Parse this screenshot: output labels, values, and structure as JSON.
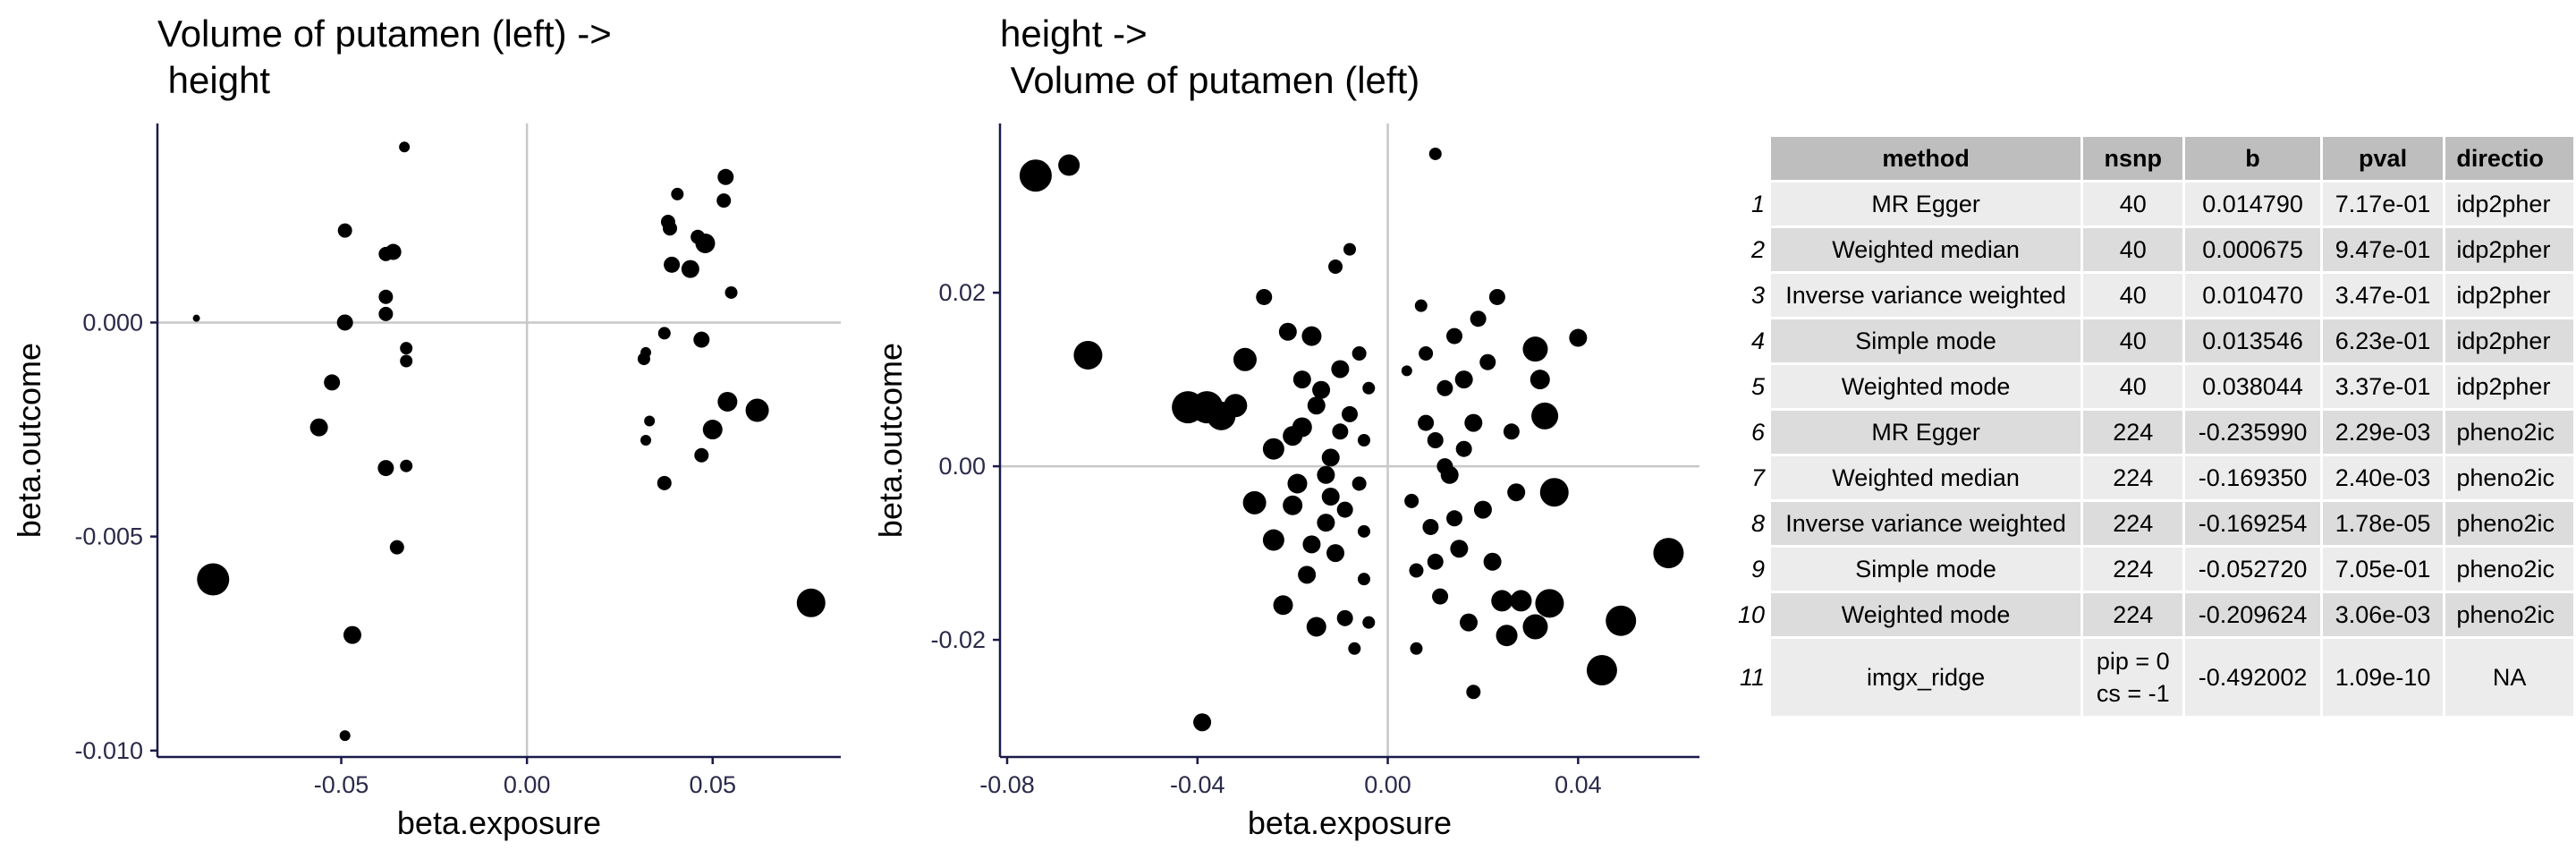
{
  "chart_data": [
    {
      "type": "scatter",
      "title_line1": "Volume of putamen (left) ->",
      "title_line2": " height",
      "xlabel": "beta.exposure",
      "ylabel": "beta.outcome",
      "xlim": [
        -0.0995,
        0.0845
      ],
      "ylim": [
        -0.01015,
        0.00465
      ],
      "xticks": [
        -0.05,
        0.0,
        0.05
      ],
      "xtick_labels": [
        "-0.05",
        "0.00",
        "0.05"
      ],
      "yticks": [
        0.0,
        -0.005,
        -0.01
      ],
      "ytick_labels": [
        "0.000",
        "-0.005",
        "-0.010"
      ],
      "points": [
        {
          "x": -0.089,
          "y": 0.0001,
          "r": 4
        },
        {
          "x": -0.0845,
          "y": -0.006,
          "r": 18
        },
        {
          "x": -0.056,
          "y": -0.00245,
          "r": 10
        },
        {
          "x": -0.0525,
          "y": -0.0014,
          "r": 9
        },
        {
          "x": -0.049,
          "y": 0.00215,
          "r": 8
        },
        {
          "x": -0.049,
          "y": 0.0,
          "r": 9
        },
        {
          "x": -0.049,
          "y": -0.00965,
          "r": 6
        },
        {
          "x": -0.047,
          "y": -0.0073,
          "r": 10
        },
        {
          "x": -0.038,
          "y": 0.0016,
          "r": 8
        },
        {
          "x": -0.038,
          "y": 0.0006,
          "r": 8
        },
        {
          "x": -0.038,
          "y": 0.0002,
          "r": 8
        },
        {
          "x": -0.038,
          "y": -0.0034,
          "r": 9
        },
        {
          "x": -0.036,
          "y": 0.00165,
          "r": 9
        },
        {
          "x": -0.035,
          "y": -0.00525,
          "r": 8
        },
        {
          "x": -0.033,
          "y": 0.0041,
          "r": 6
        },
        {
          "x": -0.0325,
          "y": -0.0006,
          "r": 7
        },
        {
          "x": -0.0325,
          "y": -0.0009,
          "r": 7
        },
        {
          "x": -0.0325,
          "y": -0.00335,
          "r": 7
        },
        {
          "x": 0.0315,
          "y": -0.00085,
          "r": 7
        },
        {
          "x": 0.032,
          "y": -0.0007,
          "r": 6
        },
        {
          "x": 0.032,
          "y": -0.00275,
          "r": 6
        },
        {
          "x": 0.033,
          "y": -0.0023,
          "r": 6
        },
        {
          "x": 0.037,
          "y": -0.00375,
          "r": 8
        },
        {
          "x": 0.037,
          "y": -0.00025,
          "r": 7
        },
        {
          "x": 0.038,
          "y": 0.00235,
          "r": 8
        },
        {
          "x": 0.0385,
          "y": 0.0022,
          "r": 8
        },
        {
          "x": 0.039,
          "y": 0.00135,
          "r": 9
        },
        {
          "x": 0.0405,
          "y": 0.003,
          "r": 7
        },
        {
          "x": 0.044,
          "y": 0.00125,
          "r": 10
        },
        {
          "x": 0.046,
          "y": 0.002,
          "r": 8
        },
        {
          "x": 0.047,
          "y": -0.0004,
          "r": 9
        },
        {
          "x": 0.047,
          "y": -0.0031,
          "r": 8
        },
        {
          "x": 0.048,
          "y": 0.00185,
          "r": 11
        },
        {
          "x": 0.05,
          "y": -0.0025,
          "r": 11
        },
        {
          "x": 0.053,
          "y": 0.00285,
          "r": 8
        },
        {
          "x": 0.0535,
          "y": 0.0034,
          "r": 9
        },
        {
          "x": 0.054,
          "y": -0.00185,
          "r": 11
        },
        {
          "x": 0.055,
          "y": 0.0007,
          "r": 7
        },
        {
          "x": 0.062,
          "y": -0.00205,
          "r": 13
        },
        {
          "x": 0.0765,
          "y": -0.00655,
          "r": 16
        }
      ]
    },
    {
      "type": "scatter",
      "title_line1": "height ->",
      "title_line2": " Volume of putamen (left)",
      "xlabel": "beta.exposure",
      "ylabel": "beta.outcome",
      "xlim": [
        -0.0815,
        0.0655
      ],
      "ylim": [
        -0.0335,
        0.0395
      ],
      "xticks": [
        -0.08,
        -0.04,
        0.0,
        0.04
      ],
      "xtick_labels": [
        "-0.08",
        "-0.04",
        "0.00",
        "0.04"
      ],
      "yticks": [
        0.02,
        0.0,
        -0.02
      ],
      "ytick_labels": [
        "0.02",
        "0.00",
        "-0.02"
      ],
      "points": [
        {
          "x": -0.074,
          "y": 0.0335,
          "r": 18
        },
        {
          "x": -0.067,
          "y": 0.0347,
          "r": 12
        },
        {
          "x": -0.063,
          "y": 0.0128,
          "r": 16
        },
        {
          "x": -0.042,
          "y": 0.0068,
          "r": 18
        },
        {
          "x": -0.038,
          "y": 0.0068,
          "r": 18
        },
        {
          "x": -0.035,
          "y": 0.0058,
          "r": 16
        },
        {
          "x": -0.032,
          "y": 0.007,
          "r": 13
        },
        {
          "x": -0.03,
          "y": 0.0123,
          "r": 13
        },
        {
          "x": -0.028,
          "y": -0.0042,
          "r": 13
        },
        {
          "x": -0.026,
          "y": 0.0195,
          "r": 9
        },
        {
          "x": -0.024,
          "y": 0.002,
          "r": 12
        },
        {
          "x": -0.024,
          "y": -0.0085,
          "r": 12
        },
        {
          "x": -0.022,
          "y": -0.016,
          "r": 11
        },
        {
          "x": -0.021,
          "y": 0.0155,
          "r": 10
        },
        {
          "x": -0.02,
          "y": 0.0035,
          "r": 11
        },
        {
          "x": -0.019,
          "y": -0.002,
          "r": 11
        },
        {
          "x": -0.018,
          "y": 0.0045,
          "r": 11
        },
        {
          "x": -0.017,
          "y": -0.0125,
          "r": 10
        },
        {
          "x": -0.016,
          "y": 0.015,
          "r": 11
        },
        {
          "x": -0.015,
          "y": -0.0185,
          "r": 11
        },
        {
          "x": -0.014,
          "y": 0.0088,
          "r": 10
        },
        {
          "x": -0.013,
          "y": -0.0065,
          "r": 10
        },
        {
          "x": -0.012,
          "y": 0.001,
          "r": 10
        },
        {
          "x": -0.012,
          "y": -0.0035,
          "r": 10
        },
        {
          "x": -0.011,
          "y": 0.023,
          "r": 8
        },
        {
          "x": -0.011,
          "y": -0.01,
          "r": 10
        },
        {
          "x": -0.01,
          "y": 0.0112,
          "r": 10
        },
        {
          "x": -0.009,
          "y": -0.005,
          "r": 9
        },
        {
          "x": -0.009,
          "y": -0.0175,
          "r": 9
        },
        {
          "x": -0.008,
          "y": 0.006,
          "r": 9
        },
        {
          "x": -0.008,
          "y": 0.025,
          "r": 7
        },
        {
          "x": -0.007,
          "y": -0.021,
          "r": 7
        },
        {
          "x": -0.006,
          "y": 0.013,
          "r": 8
        },
        {
          "x": -0.006,
          "y": -0.002,
          "r": 8
        },
        {
          "x": -0.005,
          "y": 0.003,
          "r": 7
        },
        {
          "x": -0.005,
          "y": -0.0075,
          "r": 7
        },
        {
          "x": -0.005,
          "y": -0.013,
          "r": 7
        },
        {
          "x": -0.004,
          "y": 0.009,
          "r": 7
        },
        {
          "x": -0.004,
          "y": -0.018,
          "r": 7
        },
        {
          "x": -0.018,
          "y": 0.01,
          "r": 10
        },
        {
          "x": -0.015,
          "y": 0.007,
          "r": 10
        },
        {
          "x": -0.013,
          "y": -0.001,
          "r": 10
        },
        {
          "x": -0.01,
          "y": 0.004,
          "r": 9
        },
        {
          "x": -0.016,
          "y": -0.009,
          "r": 10
        },
        {
          "x": -0.02,
          "y": -0.0045,
          "r": 11
        },
        {
          "x": -0.039,
          "y": -0.0295,
          "r": 10
        },
        {
          "x": 0.004,
          "y": 0.011,
          "r": 6
        },
        {
          "x": 0.005,
          "y": -0.004,
          "r": 8
        },
        {
          "x": 0.006,
          "y": -0.012,
          "r": 8
        },
        {
          "x": 0.006,
          "y": -0.021,
          "r": 7
        },
        {
          "x": 0.007,
          "y": 0.0185,
          "r": 7
        },
        {
          "x": 0.008,
          "y": 0.005,
          "r": 9
        },
        {
          "x": 0.009,
          "y": -0.007,
          "r": 9
        },
        {
          "x": 0.01,
          "y": 0.036,
          "r": 7
        },
        {
          "x": 0.01,
          "y": 0.003,
          "r": 9
        },
        {
          "x": 0.011,
          "y": -0.015,
          "r": 9
        },
        {
          "x": 0.012,
          "y": 0.009,
          "r": 9
        },
        {
          "x": 0.013,
          "y": -0.001,
          "r": 10
        },
        {
          "x": 0.014,
          "y": 0.015,
          "r": 9
        },
        {
          "x": 0.015,
          "y": -0.0095,
          "r": 10
        },
        {
          "x": 0.016,
          "y": 0.01,
          "r": 10
        },
        {
          "x": 0.017,
          "y": -0.018,
          "r": 10
        },
        {
          "x": 0.018,
          "y": 0.005,
          "r": 10
        },
        {
          "x": 0.018,
          "y": -0.026,
          "r": 8
        },
        {
          "x": 0.019,
          "y": 0.017,
          "r": 9
        },
        {
          "x": 0.02,
          "y": -0.005,
          "r": 10
        },
        {
          "x": 0.021,
          "y": 0.012,
          "r": 9
        },
        {
          "x": 0.022,
          "y": -0.011,
          "r": 10
        },
        {
          "x": 0.023,
          "y": 0.0195,
          "r": 9
        },
        {
          "x": 0.024,
          "y": -0.0155,
          "r": 12
        },
        {
          "x": 0.025,
          "y": -0.0195,
          "r": 12
        },
        {
          "x": 0.026,
          "y": 0.004,
          "r": 9
        },
        {
          "x": 0.027,
          "y": -0.003,
          "r": 10
        },
        {
          "x": 0.028,
          "y": -0.0155,
          "r": 12
        },
        {
          "x": 0.031,
          "y": 0.0135,
          "r": 14
        },
        {
          "x": 0.031,
          "y": -0.0185,
          "r": 14
        },
        {
          "x": 0.032,
          "y": 0.01,
          "r": 11
        },
        {
          "x": 0.033,
          "y": 0.0058,
          "r": 15
        },
        {
          "x": 0.034,
          "y": -0.0158,
          "r": 16
        },
        {
          "x": 0.035,
          "y": -0.003,
          "r": 16
        },
        {
          "x": 0.04,
          "y": 0.0148,
          "r": 10
        },
        {
          "x": 0.045,
          "y": -0.0235,
          "r": 17
        },
        {
          "x": 0.049,
          "y": -0.0178,
          "r": 17
        },
        {
          "x": 0.059,
          "y": -0.01,
          "r": 17
        },
        {
          "x": 0.012,
          "y": 0.0,
          "r": 9
        },
        {
          "x": 0.014,
          "y": -0.006,
          "r": 9
        },
        {
          "x": 0.01,
          "y": -0.011,
          "r": 9
        },
        {
          "x": 0.008,
          "y": 0.013,
          "r": 8
        },
        {
          "x": 0.016,
          "y": 0.002,
          "r": 9
        }
      ]
    }
  ],
  "table": {
    "columns": [
      "method",
      "nsnp",
      "b",
      "pval",
      "directio"
    ],
    "rows": [
      {
        "idx": "1",
        "method": "MR Egger",
        "nsnp": "40",
        "b": "0.014790",
        "pval": "7.17e-01",
        "direction": "idp2pher"
      },
      {
        "idx": "2",
        "method": "Weighted median",
        "nsnp": "40",
        "b": "0.000675",
        "pval": "9.47e-01",
        "direction": "idp2pher"
      },
      {
        "idx": "3",
        "method": "Inverse variance weighted",
        "nsnp": "40",
        "b": "0.010470",
        "pval": "3.47e-01",
        "direction": "idp2pher"
      },
      {
        "idx": "4",
        "method": "Simple mode",
        "nsnp": "40",
        "b": "0.013546",
        "pval": "6.23e-01",
        "direction": "idp2pher"
      },
      {
        "idx": "5",
        "method": "Weighted mode",
        "nsnp": "40",
        "b": "0.038044",
        "pval": "3.37e-01",
        "direction": "idp2pher"
      },
      {
        "idx": "6",
        "method": "MR Egger",
        "nsnp": "224",
        "b": "-0.235990",
        "pval": "2.29e-03",
        "direction": "pheno2ic"
      },
      {
        "idx": "7",
        "method": "Weighted median",
        "nsnp": "224",
        "b": "-0.169350",
        "pval": "2.40e-03",
        "direction": "pheno2ic"
      },
      {
        "idx": "8",
        "method": "Inverse variance weighted",
        "nsnp": "224",
        "b": "-0.169254",
        "pval": "1.78e-05",
        "direction": "pheno2ic"
      },
      {
        "idx": "9",
        "method": "Simple mode",
        "nsnp": "224",
        "b": "-0.052720",
        "pval": "7.05e-01",
        "direction": "pheno2ic"
      },
      {
        "idx": "10",
        "method": "Weighted mode",
        "nsnp": "224",
        "b": "-0.209624",
        "pval": "3.06e-03",
        "direction": "pheno2ic"
      },
      {
        "idx": "11",
        "method": "imgx_ridge",
        "nsnp": "pip = 0",
        "nsnp2": "cs = -1",
        "b": "-0.492002",
        "pval": "1.09e-10",
        "direction": "NA"
      }
    ]
  }
}
